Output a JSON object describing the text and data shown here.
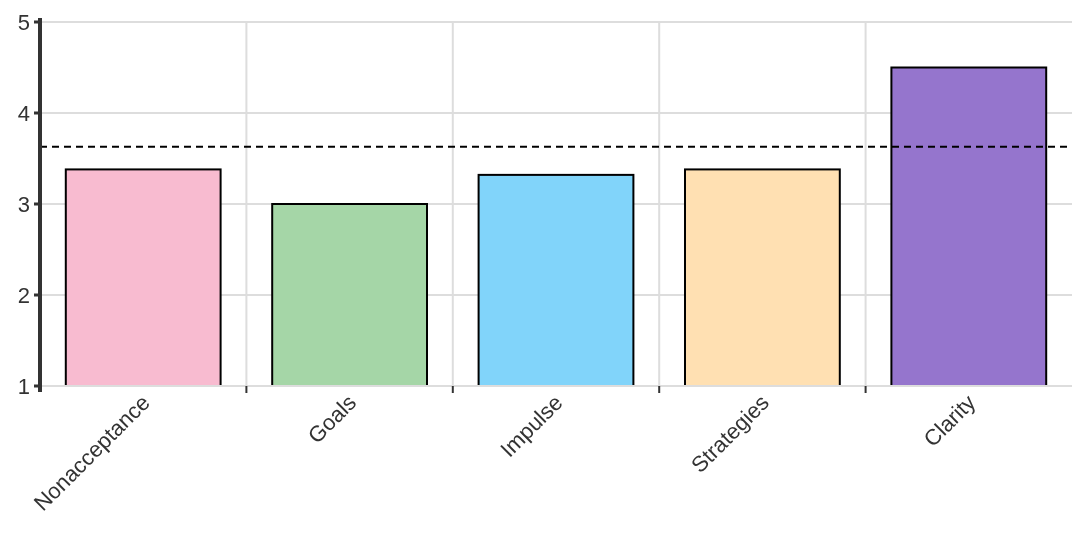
{
  "chart_data": {
    "type": "bar",
    "categories": [
      "Nonacceptance",
      "Goals",
      "Impulse",
      "Strategies",
      "Clarity"
    ],
    "values": [
      3.38,
      3.0,
      3.32,
      3.38,
      4.5
    ],
    "colors": [
      "#f8bbd0",
      "#a5d6a7",
      "#81d4fa",
      "#ffe0b2",
      "#9575cd"
    ],
    "ylim": [
      1,
      5
    ],
    "yticks": [
      1,
      2,
      3,
      4,
      5
    ],
    "grid": true,
    "ref_lines": [
      {
        "axis": "y",
        "value": 3.63,
        "line_style": "dashed",
        "color": "#000000"
      }
    ]
  }
}
